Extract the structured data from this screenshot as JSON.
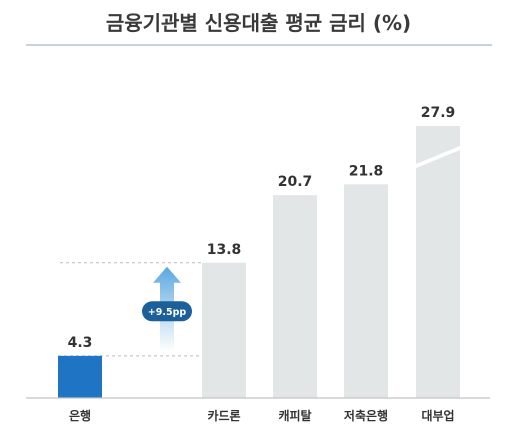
{
  "title": "금융기관별 신용대출 평균 금리 (%)",
  "colors": {
    "highlight_bar": "#1f74c4",
    "other_bars": "#e3e6e6",
    "title_rule": "#c8d2d8",
    "baseline": "#c4c4c4",
    "dash": "#bbbbbb",
    "badge": "#1d5f99",
    "arrow_top": "#5aa6e0",
    "arrow_bottom": "#ffffff"
  },
  "annotation": {
    "text": "+9.5pp",
    "icon": "up-arrow-icon"
  },
  "chart_data": {
    "type": "bar",
    "title": "금융기관별 신용대출 평균 금리 (%)",
    "categories": [
      "은행",
      "카드론",
      "캐피탈",
      "저축은행",
      "대부업"
    ],
    "values": [
      4.3,
      13.8,
      20.7,
      21.8,
      27.9
    ],
    "value_labels": [
      "4.3",
      "13.8",
      "20.7",
      "21.8",
      "27.9"
    ],
    "xlabel": "",
    "ylabel": "",
    "ylim": [
      0,
      40
    ],
    "axis_break": "대부업",
    "grid": false,
    "highlight": "은행"
  }
}
